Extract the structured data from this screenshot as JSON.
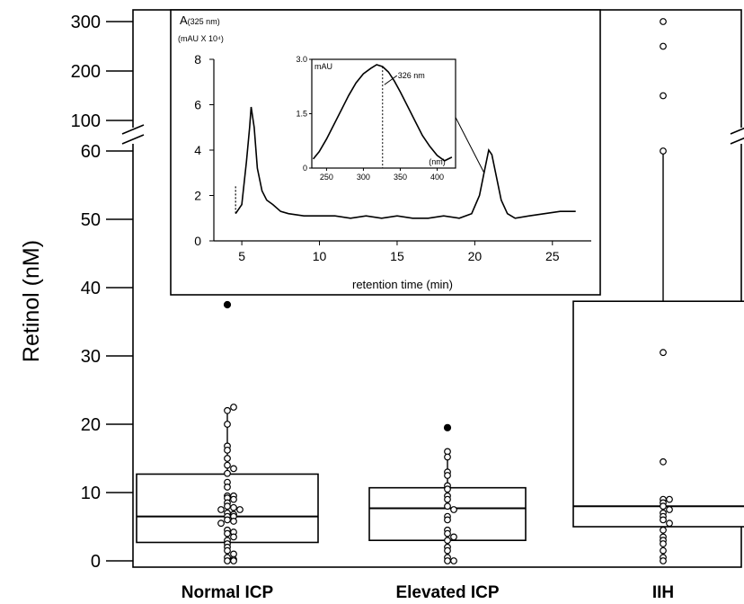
{
  "chart_data": [
    {
      "type": "box",
      "ylabel": "Retinol (nM)",
      "y_axis_break": {
        "lower": [
          0,
          60
        ],
        "upper": [
          100,
          300
        ]
      },
      "yticks": [
        "0",
        "10",
        "20",
        "30",
        "40",
        "50",
        "60",
        "100",
        "200",
        "300"
      ],
      "categories": [
        "Normal ICP",
        "Elevated ICP",
        "IIH"
      ],
      "boxes": [
        {
          "category": "Normal ICP",
          "q1": 2.7,
          "median": 6.5,
          "q3": 12.7,
          "whisker_low": 0,
          "whisker_high": 22.5,
          "outliers": [
            37.5
          ],
          "points": [
            22.0,
            22.5,
            20.0,
            16.8,
            16.2,
            15.0,
            14.0,
            13.5,
            12.8,
            11.5,
            10.8,
            9.5,
            9.5,
            9.2,
            9.0,
            8.5,
            8.0,
            7.8,
            7.5,
            7.5,
            7.0,
            6.8,
            6.5,
            6.5,
            6.0,
            5.8,
            5.5,
            4.5,
            4.2,
            4.0,
            3.5,
            3.0,
            2.5,
            2.0,
            1.5,
            1.0,
            0.5,
            0.2,
            0.0,
            0.0
          ]
        },
        {
          "category": "Elevated ICP",
          "q1": 3.0,
          "median": 7.7,
          "q3": 10.7,
          "whisker_low": 0,
          "whisker_high": 16.0,
          "outliers": [
            19.5
          ],
          "points": [
            16.0,
            15.2,
            13.0,
            12.5,
            11.0,
            10.5,
            9.5,
            9.0,
            8.0,
            7.5,
            6.5,
            6.0,
            4.5,
            4.0,
            3.5,
            3.0,
            2.0,
            1.5,
            0.5,
            0.0,
            0.0
          ]
        },
        {
          "category": "IIH",
          "q1": 5.0,
          "median": 8.0,
          "q3": 38.0,
          "whisker_low": 0,
          "whisker_high": 60.0,
          "points": [
            300,
            250,
            150,
            60,
            30.5,
            14.5,
            9.0,
            9.0,
            8.5,
            8.0,
            7.5,
            7.0,
            6.5,
            6.0,
            5.5,
            4.5,
            3.5,
            3.0,
            2.5,
            1.5,
            0.5,
            0.0
          ]
        }
      ]
    },
    {
      "type": "line",
      "ylabel_main": "A",
      "ylabel_sub": "(325 nm)",
      "ylabel_units": "(mAU X 10⁴)",
      "xlabel": "retention time (min)",
      "xlim": [
        3.2,
        27.5
      ],
      "ylim": [
        0,
        8
      ],
      "xticks": [
        5,
        10,
        15,
        20,
        25
      ],
      "yticks": [
        0,
        2,
        4,
        6,
        8
      ],
      "x": [
        4.6,
        5.0,
        5.3,
        5.5,
        5.6,
        5.8,
        6.0,
        6.3,
        6.6,
        7.0,
        7.5,
        8.0,
        9.0,
        10.0,
        11.0,
        12.0,
        13.0,
        14.0,
        15.0,
        16.0,
        17.0,
        18.0,
        19.0,
        19.8,
        20.3,
        20.6,
        20.9,
        21.1,
        21.4,
        21.7,
        22.1,
        22.6,
        23.5,
        24.5,
        25.5,
        26.5
      ],
      "y": [
        1.2,
        1.6,
        3.5,
        5.0,
        5.9,
        5.0,
        3.2,
        2.2,
        1.8,
        1.6,
        1.3,
        1.2,
        1.1,
        1.1,
        1.1,
        1.0,
        1.1,
        1.0,
        1.1,
        1.0,
        1.0,
        1.1,
        1.0,
        1.2,
        2.0,
        3.0,
        4.0,
        3.8,
        2.8,
        1.8,
        1.2,
        1.0,
        1.1,
        1.2,
        1.3,
        1.3
      ]
    },
    {
      "type": "line",
      "ylabel": "mAU",
      "xlabel": "(nm)",
      "xlim": [
        230,
        425
      ],
      "ylim": [
        0,
        3.0
      ],
      "xticks": [
        250,
        300,
        350,
        400
      ],
      "yticks": [
        0,
        1.5,
        3.0
      ],
      "ytick_labels": [
        "0",
        "1.5",
        "3.0"
      ],
      "annotation": "326 nm",
      "peak_x": 326,
      "x": [
        232,
        240,
        250,
        260,
        270,
        280,
        290,
        300,
        310,
        318,
        326,
        334,
        342,
        350,
        360,
        370,
        380,
        390,
        400,
        410,
        420
      ],
      "y": [
        0.25,
        0.45,
        0.8,
        1.2,
        1.6,
        2.0,
        2.35,
        2.6,
        2.75,
        2.85,
        2.8,
        2.65,
        2.4,
        2.1,
        1.7,
        1.3,
        0.9,
        0.6,
        0.35,
        0.2,
        0.3
      ]
    }
  ]
}
